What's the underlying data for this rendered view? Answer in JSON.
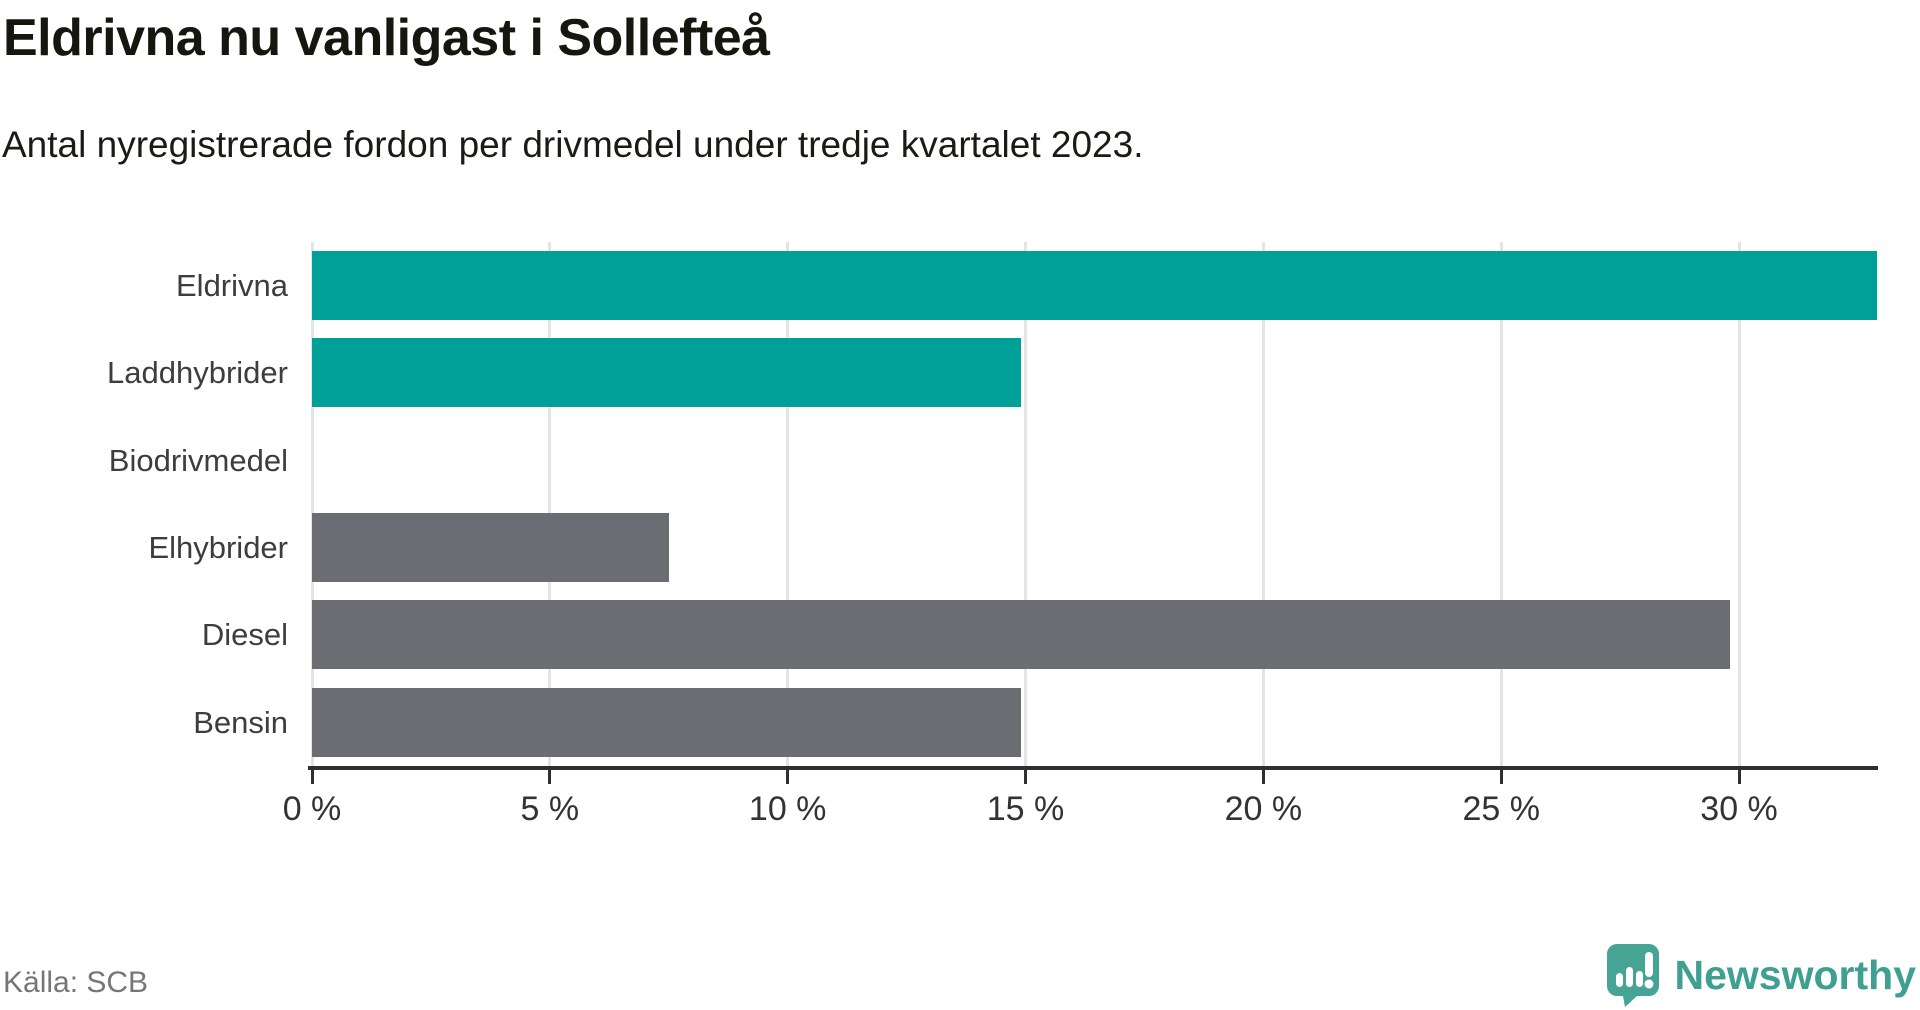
{
  "title": "Eldrivna nu vanligast i Sollefteå",
  "subtitle": "Antal nyregistrerade fordon per drivmedel under tredje kvartalet 2023.",
  "source": "Källa: SCB",
  "brand": {
    "name": "Newsworthy",
    "logo_icon": "newsworthy-speech-bubble-chart-icon",
    "color": "#3f9f90"
  },
  "colors": {
    "highlight_bar": "#00a099",
    "default_bar": "#6c6c73",
    "gridline": "#e4e4e4",
    "axis": "#2f2f2f",
    "title_text": "#16160f",
    "category_label": "#3d3d3d",
    "tick_label": "#333333",
    "source_text": "#767676"
  },
  "chart_data": {
    "type": "bar",
    "orientation": "horizontal",
    "title": "Eldrivna nu vanligast i Sollefteå",
    "subtitle": "Antal nyregistrerade fordon per drivmedel under tredje kvartalet 2023.",
    "categories": [
      "Eldrivna",
      "Laddhybrider",
      "Biodrivmedel",
      "Elhybrider",
      "Diesel",
      "Bensin"
    ],
    "values": [
      32.9,
      14.9,
      0,
      7.5,
      29.8,
      14.9
    ],
    "unit": "%",
    "bar_colors": [
      "#00a099",
      "#00a099",
      "#6c6c73",
      "#6c6c73",
      "#6c6c73",
      "#6c6c73"
    ],
    "highlighted_categories": [
      "Eldrivna",
      "Laddhybrider"
    ],
    "xlabel": "",
    "ylabel": "",
    "xlim": [
      0,
      32.9
    ],
    "xticks": [
      0,
      5,
      10,
      15,
      20,
      25,
      30
    ],
    "xtick_labels": [
      "0 %",
      "5 %",
      "10 %",
      "15 %",
      "20 %",
      "25 %",
      "30 %"
    ],
    "grid": true,
    "legend": false,
    "source": "SCB"
  }
}
